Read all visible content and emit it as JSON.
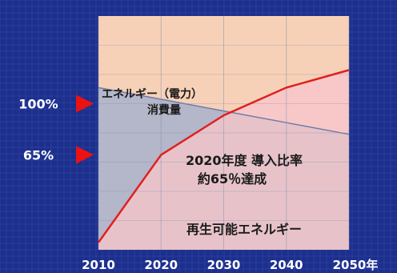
{
  "chart_data": {
    "type": "area",
    "x": [
      2010,
      2020,
      2030,
      2040,
      2050
    ],
    "x_tick_labels": [
      "2010",
      "2020",
      "2030",
      "2040",
      "2050年"
    ],
    "ylim": [
      0,
      160
    ],
    "y_marker_labels": [
      {
        "label": "100%",
        "value": 100
      },
      {
        "label": "65%",
        "value": 65
      }
    ],
    "series": [
      {
        "name": "エネルギー（電力）消費量",
        "name_lines": [
          "エネルギー（電力）",
          "消費量"
        ],
        "x": [
          2010,
          2020,
          2030,
          2040,
          2050
        ],
        "values": [
          111,
          103,
          95,
          87,
          79
        ],
        "color": "#99a4c4"
      },
      {
        "name": "再生可能エネルギー",
        "x": [
          2010,
          2020,
          2030,
          2040,
          2050
        ],
        "values": [
          5,
          65,
          92,
          111,
          123
        ],
        "color": "#e02020"
      }
    ],
    "annotation": {
      "lines": [
        "2020年度 導入比率",
        "約65％達成"
      ]
    },
    "grid": true,
    "colors": {
      "background": "#1c2f8c",
      "upper_fill": "#f7d1b7",
      "renewable_fill": "#f8c8c8",
      "consumption_fill": "#a8b2cc",
      "marker": "#ee1111"
    }
  }
}
